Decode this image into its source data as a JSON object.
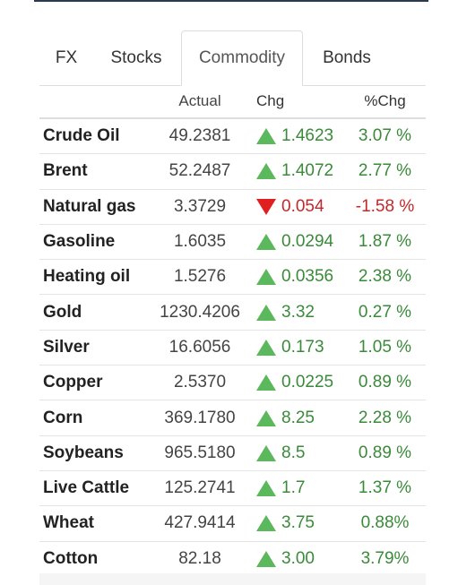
{
  "tabs": [
    {
      "label": "FX",
      "active": false
    },
    {
      "label": "Stocks",
      "active": false
    },
    {
      "label": "Commodity",
      "active": true
    },
    {
      "label": "Bonds",
      "active": false
    }
  ],
  "columns": {
    "actual": "Actual",
    "chg": "Chg",
    "pct": "%Chg"
  },
  "colors": {
    "up": "#5cb85c",
    "down": "#e02020",
    "positive_text": "#3a8a3a",
    "negative_text": "#c0282d"
  },
  "rows": [
    {
      "name": "Crude Oil",
      "actual": "49.2381",
      "direction": "up",
      "chg": "1.4623",
      "pct": "3.07 %"
    },
    {
      "name": "Brent",
      "actual": "52.2487",
      "direction": "up",
      "chg": "1.4072",
      "pct": "2.77 %"
    },
    {
      "name": "Natural gas",
      "actual": "3.3729",
      "direction": "down",
      "chg": "0.054",
      "pct": "-1.58 %"
    },
    {
      "name": "Gasoline",
      "actual": "1.6035",
      "direction": "up",
      "chg": "0.0294",
      "pct": "1.87 %"
    },
    {
      "name": "Heating oil",
      "actual": "1.5276",
      "direction": "up",
      "chg": "0.0356",
      "pct": "2.38 %"
    },
    {
      "name": "Gold",
      "actual": "1230.4206",
      "direction": "up",
      "chg": "3.32",
      "pct": "0.27 %"
    },
    {
      "name": "Silver",
      "actual": "16.6056",
      "direction": "up",
      "chg": "0.173",
      "pct": "1.05 %"
    },
    {
      "name": "Copper",
      "actual": "2.5370",
      "direction": "up",
      "chg": "0.0225",
      "pct": "0.89 %"
    },
    {
      "name": "Corn",
      "actual": "369.1780",
      "direction": "up",
      "chg": "8.25",
      "pct": "2.28 %"
    },
    {
      "name": "Soybeans",
      "actual": "965.5180",
      "direction": "up",
      "chg": "8.5",
      "pct": "0.89 %"
    },
    {
      "name": "Live Cattle",
      "actual": "125.2741",
      "direction": "up",
      "chg": "1.7",
      "pct": "1.37 %"
    },
    {
      "name": "Wheat",
      "actual": "427.9414",
      "direction": "up",
      "chg": "3.75",
      "pct": "0.88%"
    },
    {
      "name": "Cotton",
      "actual": "82.18",
      "direction": "up",
      "chg": "3.00",
      "pct": "3.79%"
    }
  ]
}
